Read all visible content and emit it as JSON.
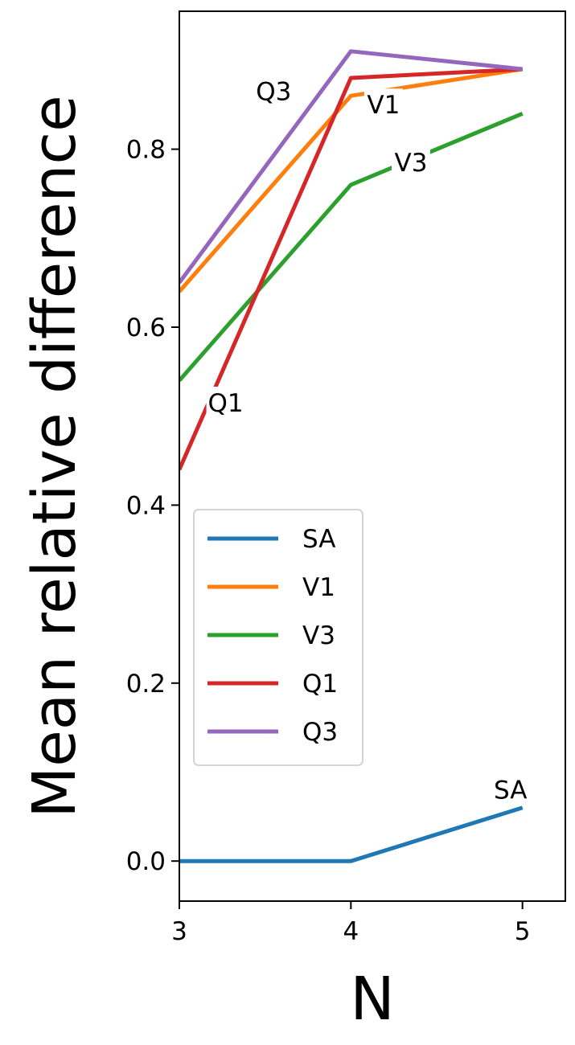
{
  "chart_data": {
    "type": "line",
    "xlabel": "N",
    "ylabel": "Mean relative difference",
    "x": [
      3,
      4,
      5
    ],
    "xticks": [
      "3",
      "4",
      "5"
    ],
    "yticks": [
      "0.0",
      "0.2",
      "0.4",
      "0.6",
      "0.8"
    ],
    "xlim": [
      3,
      5.25
    ],
    "ylim": [
      -0.045,
      0.955
    ],
    "grid": false,
    "legend_position": "center-left",
    "series": [
      {
        "name": "SA",
        "color": "#1f77b4",
        "values": [
          0.0,
          0.0,
          0.06
        ]
      },
      {
        "name": "V1",
        "color": "#ff7f0e",
        "values": [
          0.64,
          0.86,
          0.89
        ]
      },
      {
        "name": "V3",
        "color": "#2ca02c",
        "values": [
          0.54,
          0.76,
          0.84
        ]
      },
      {
        "name": "Q1",
        "color": "#d62728",
        "values": [
          0.44,
          0.88,
          0.89
        ]
      },
      {
        "name": "Q3",
        "color": "#9467bd",
        "values": [
          0.65,
          0.91,
          0.89
        ]
      }
    ],
    "annotations": [
      {
        "text": "Q3",
        "x": 3.55,
        "y": 0.865
      },
      {
        "text": "V1",
        "x": 4.19,
        "y": 0.85
      },
      {
        "text": "V3",
        "x": 4.35,
        "y": 0.785
      },
      {
        "text": "Q1",
        "x": 3.27,
        "y": 0.515
      },
      {
        "text": "SA",
        "x": 4.93,
        "y": 0.08
      }
    ]
  }
}
